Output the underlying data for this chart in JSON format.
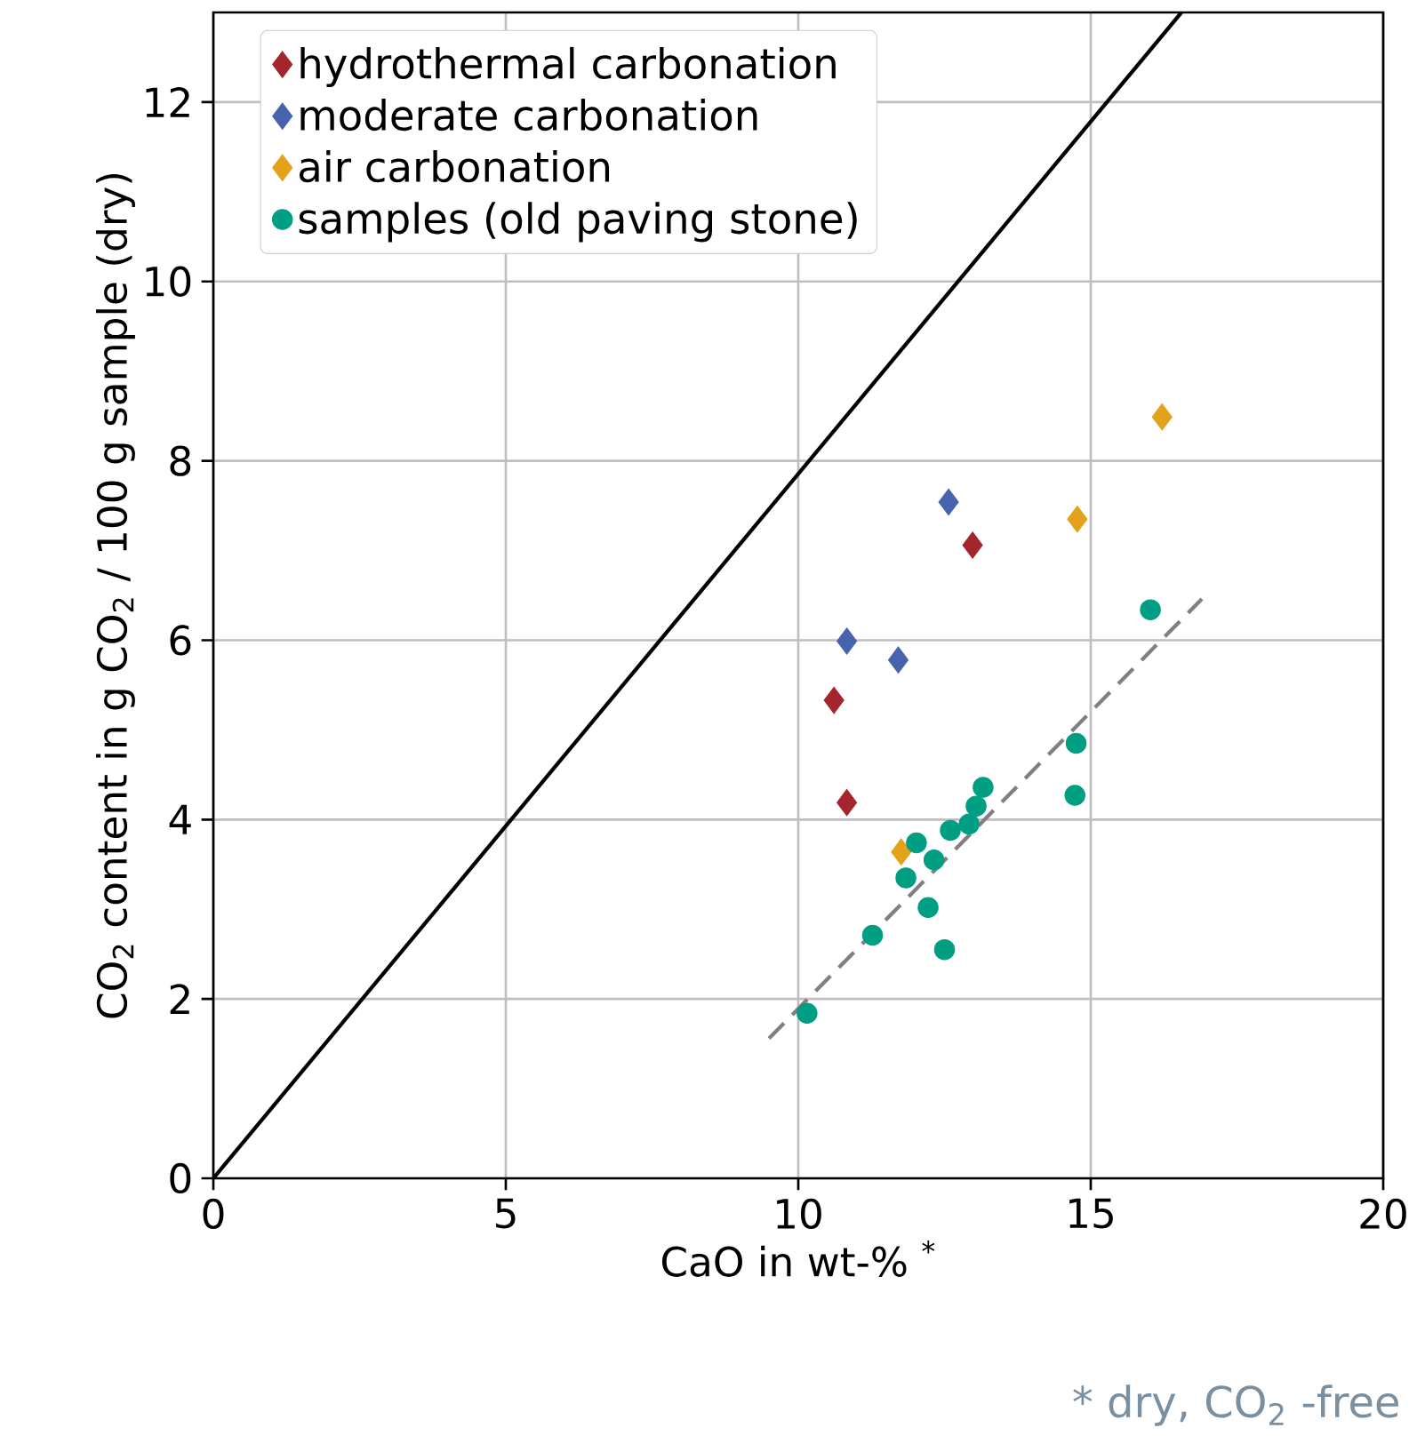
{
  "chart_data": {
    "type": "scatter",
    "xlabel": "CaO in wt-% $^{*}$",
    "ylabel": "CO$_{2}$ content in g CO$_{2}$ / 100 g sample (dry)",
    "xlim": [
      0,
      20
    ],
    "ylim": [
      0,
      13
    ],
    "xticks": [
      0,
      5,
      10,
      15,
      20
    ],
    "yticks": [
      0,
      2,
      4,
      6,
      8,
      10,
      12
    ],
    "grid": true,
    "legend": "top left",
    "series": [
      {
        "name": "hydrothermal carbonation",
        "marker": "diamond",
        "color": "#a4262c",
        "x": [
          12.98,
          10.61,
          10.83
        ],
        "values": [
          7.06,
          5.33,
          4.19
        ]
      },
      {
        "name": "moderate carbonation",
        "marker": "diamond",
        "color": "#4763ad",
        "x": [
          12.57,
          10.83,
          11.71
        ],
        "values": [
          7.54,
          5.99,
          5.78
        ]
      },
      {
        "name": "air carbonation",
        "marker": "diamond",
        "color": "#e3a21a",
        "x": [
          16.22,
          14.77,
          11.76
        ],
        "values": [
          8.49,
          7.35,
          3.64
        ]
      },
      {
        "name": "samples (old paving stone)",
        "marker": "circle",
        "color": "#009e82",
        "x": [
          16.02,
          14.75,
          14.73,
          13.16,
          13.04,
          12.92,
          12.6,
          12.02,
          12.32,
          11.84,
          12.22,
          11.27,
          12.5,
          10.15
        ],
        "values": [
          6.34,
          4.85,
          4.27,
          4.36,
          4.15,
          3.95,
          3.88,
          3.74,
          3.55,
          3.35,
          3.02,
          2.71,
          2.55,
          1.84
        ]
      },
      {
        "type": "line",
        "marker": "none",
        "line_style": "solid",
        "color": "#000000",
        "x": [
          0,
          16.55
        ],
        "values": [
          0,
          13
        ]
      },
      {
        "type": "line",
        "marker": "none",
        "line_style": "dashed",
        "color": "#808080",
        "x": [
          9.5,
          16.9
        ],
        "values": [
          1.56,
          6.46
        ]
      }
    ],
    "annotations": [
      "* dry, CO$_{2}$ -free"
    ]
  }
}
